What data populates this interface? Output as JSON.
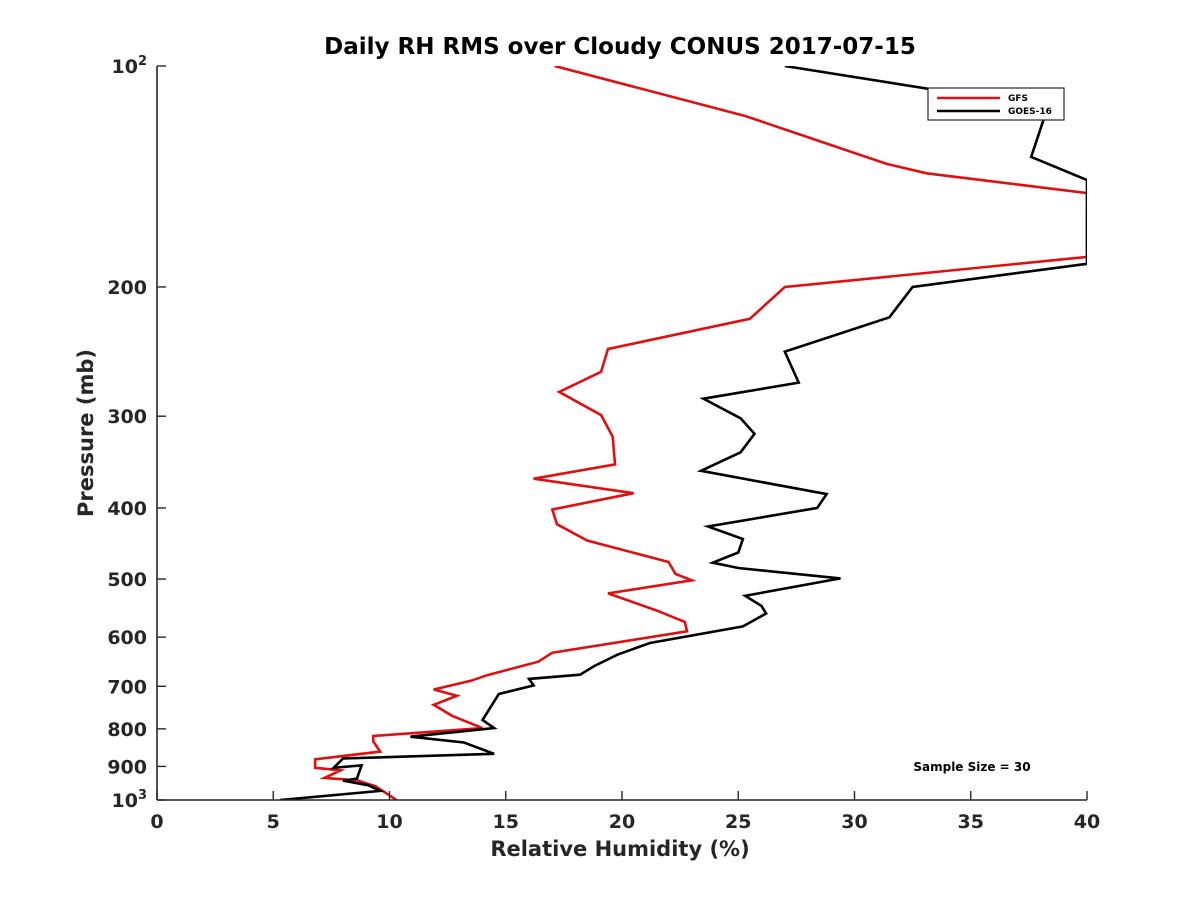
{
  "chart_data": {
    "type": "line",
    "title": "Daily RH RMS over Cloudy CONUS 2017-07-15",
    "xlabel": "Relative Humidity (%)",
    "ylabel": "Pressure (mb)",
    "xlim": [
      0,
      40
    ],
    "ylim": [
      1000,
      100
    ],
    "y_scale": "log",
    "y_reversed": true,
    "grid": false,
    "legend_position": "top-right",
    "annotation": "Sample Size = 30",
    "x_ticks": [
      "0",
      "5",
      "10",
      "15",
      "20",
      "25",
      "30",
      "35",
      "40"
    ],
    "y_ticks": [
      {
        "value": 100,
        "base": "10",
        "exp": "2"
      },
      {
        "value": 200,
        "label": "200"
      },
      {
        "value": 300,
        "label": "300"
      },
      {
        "value": 400,
        "label": "400"
      },
      {
        "value": 500,
        "label": "500"
      },
      {
        "value": 600,
        "label": "600"
      },
      {
        "value": 700,
        "label": "700"
      },
      {
        "value": 800,
        "label": "800"
      },
      {
        "value": 900,
        "label": "900"
      },
      {
        "value": 1000,
        "base": "10",
        "exp": "3"
      }
    ],
    "series": [
      {
        "name": "GFS",
        "color": "#e01010",
        "points": [
          [
            17.1,
            100
          ],
          [
            25.3,
            117
          ],
          [
            31.4,
            136
          ],
          [
            33.1,
            140
          ],
          [
            40,
            149
          ],
          [
            40,
            182
          ],
          [
            27.0,
            200
          ],
          [
            25.5,
            221
          ],
          [
            19.4,
            243
          ],
          [
            19.1,
            261
          ],
          [
            17.3,
            278
          ],
          [
            19.1,
            299
          ],
          [
            19.6,
            320
          ],
          [
            19.7,
            349
          ],
          [
            16.2,
            365
          ],
          [
            20.5,
            382
          ],
          [
            17.0,
            402
          ],
          [
            17.2,
            421
          ],
          [
            18.5,
            443
          ],
          [
            22.0,
            474
          ],
          [
            22.3,
            492
          ],
          [
            23.0,
            502
          ],
          [
            19.4,
            523
          ],
          [
            21.5,
            552
          ],
          [
            22.7,
            572
          ],
          [
            22.8,
            589
          ],
          [
            17.0,
            630
          ],
          [
            16.4,
            648
          ],
          [
            14.2,
            676
          ],
          [
            13.5,
            688
          ],
          [
            11.9,
            707
          ],
          [
            12.9,
            721
          ],
          [
            11.9,
            742
          ],
          [
            12.7,
            768
          ],
          [
            14.0,
            798
          ],
          [
            9.3,
            818
          ],
          [
            9.3,
            832
          ],
          [
            9.6,
            859
          ],
          [
            6.8,
            880
          ],
          [
            6.8,
            904
          ],
          [
            7.9,
            911
          ],
          [
            7.2,
            933
          ],
          [
            8.6,
            940
          ],
          [
            9.4,
            958
          ],
          [
            10.3,
            1000
          ]
        ]
      },
      {
        "name": "GOES-16",
        "color": "#000000",
        "points": [
          [
            27.0,
            100
          ],
          [
            38.3,
            114
          ],
          [
            37.6,
            133
          ],
          [
            40,
            143
          ],
          [
            40,
            186
          ],
          [
            32.5,
            200
          ],
          [
            31.5,
            220
          ],
          [
            27.0,
            245
          ],
          [
            27.6,
            270
          ],
          [
            23.5,
            284
          ],
          [
            25.1,
            302
          ],
          [
            25.7,
            317
          ],
          [
            25.1,
            336
          ],
          [
            23.4,
            356
          ],
          [
            28.8,
            383
          ],
          [
            28.4,
            400
          ],
          [
            23.7,
            424
          ],
          [
            25.2,
            441
          ],
          [
            25.0,
            460
          ],
          [
            23.9,
            475
          ],
          [
            25.0,
            483
          ],
          [
            29.4,
            499
          ],
          [
            25.3,
            527
          ],
          [
            26.0,
            544
          ],
          [
            26.2,
            557
          ],
          [
            25.2,
            580
          ],
          [
            21.2,
            611
          ],
          [
            19.8,
            634
          ],
          [
            18.8,
            657
          ],
          [
            18.2,
            675
          ],
          [
            16.0,
            684
          ],
          [
            16.2,
            698
          ],
          [
            14.7,
            717
          ],
          [
            14.0,
            778
          ],
          [
            14.5,
            798
          ],
          [
            10.9,
            820
          ],
          [
            13.2,
            835
          ],
          [
            14.5,
            865
          ],
          [
            8.0,
            878
          ],
          [
            7.6,
            904
          ],
          [
            8.8,
            897
          ],
          [
            8.6,
            935
          ],
          [
            8.0,
            941
          ],
          [
            9.1,
            955
          ],
          [
            9.6,
            972
          ],
          [
            5.3,
            1000
          ]
        ]
      }
    ]
  }
}
